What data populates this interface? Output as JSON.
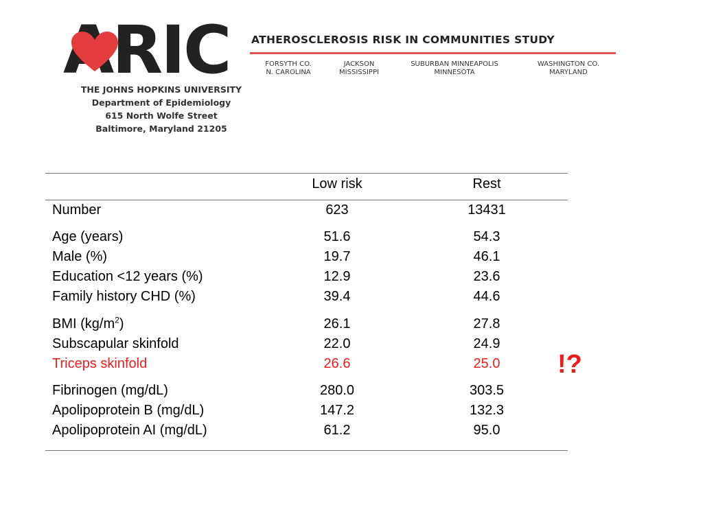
{
  "letterhead": {
    "logo_text": "ARIC",
    "study_title": "ATHEROSCLEROSIS RISK IN COMMUNITIES STUDY",
    "sites": [
      {
        "line1": "FORSYTH CO.",
        "line2": "N. CAROLINA"
      },
      {
        "line1": "JACKSON",
        "line2": "MISSISSIPPI"
      },
      {
        "line1": "SUBURBAN MINNEAPOLIS",
        "line2": "MINNESOTA"
      },
      {
        "line1": "WASHINGTON CO.",
        "line2": "MARYLAND"
      }
    ],
    "address": [
      "THE JOHNS HOPKINS UNIVERSITY",
      "Department of Epidemiology",
      "615 North Wolfe Street",
      "Baltimore, Maryland 21205"
    ],
    "colors": {
      "heart": "#e43d3d",
      "rule": "#e0534f"
    }
  },
  "table": {
    "headers": {
      "col_a": "Low risk",
      "col_b": "Rest"
    },
    "rows": [
      {
        "label": "Number",
        "a": "623",
        "b": "13431"
      },
      {
        "label": "Age (years)",
        "a": "51.6",
        "b": "54.3"
      },
      {
        "label": "Male (%)",
        "a": "19.7",
        "b": "46.1"
      },
      {
        "label": "Education <12 years (%)",
        "a": "12.9",
        "b": "23.6"
      },
      {
        "label": "Family history CHD (%)",
        "a": "39.4",
        "b": "44.6"
      },
      {
        "label": "BMI (kg/m",
        "label_sup": "2",
        "label_after": ")",
        "a": "26.1",
        "b": "27.8"
      },
      {
        "label": "Subscapular skinfold",
        "a": "22.0",
        "b": "24.9"
      },
      {
        "label": "Triceps skinfold",
        "a": "26.6",
        "b": "25.0",
        "highlight": true
      },
      {
        "label": "Fibrinogen (mg/dL)",
        "a": "280.0",
        "b": "303.5"
      },
      {
        "label": "Apolipoprotein B (mg/dL)",
        "a": "147.2",
        "b": "132.3"
      },
      {
        "label": "Apolipoprotein AI (mg/dL)",
        "a": "61.2",
        "b": "95.0"
      }
    ],
    "highlight_color": "#ee1b1b"
  },
  "annotation": "!?"
}
